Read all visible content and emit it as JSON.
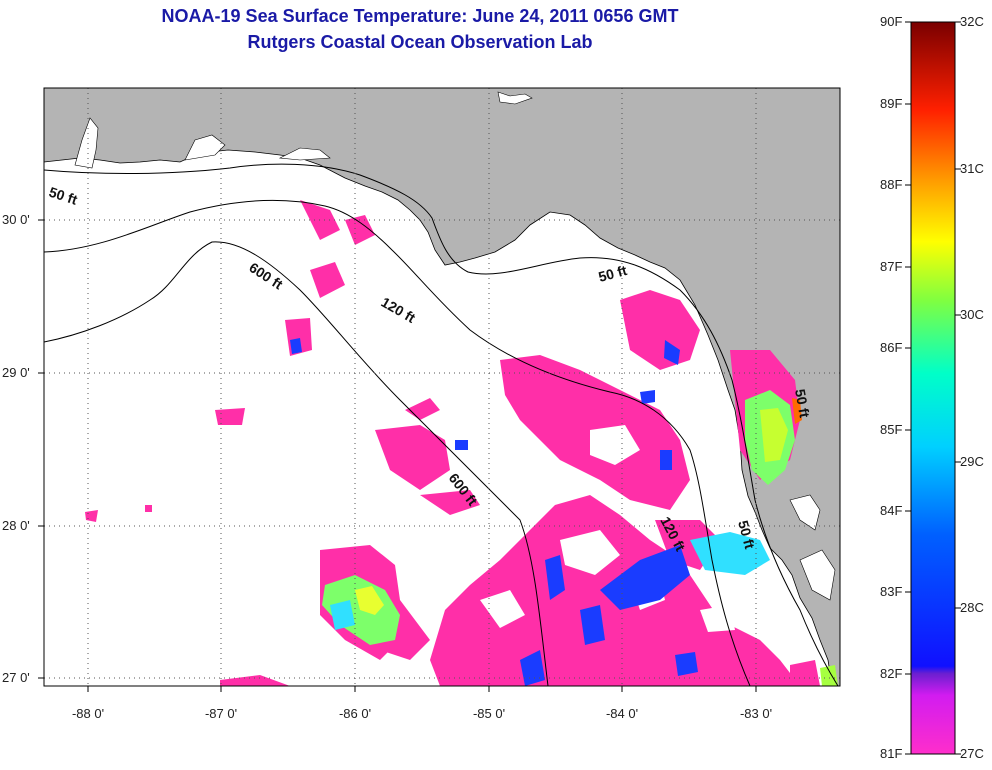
{
  "header": {
    "title": "NOAA-19 Sea Surface Temperature:  June 24, 2011 0656 GMT",
    "subtitle": "Rutgers Coastal Ocean Observation Lab"
  },
  "map": {
    "lat_labels": [
      "30 0'",
      "29 0'",
      "28 0'",
      "27 0'"
    ],
    "lon_labels": [
      "-88 0'",
      "-87 0'",
      "-86 0'",
      "-85 0'",
      "-84 0'",
      "-83 0'"
    ],
    "contours": [
      "50 ft",
      "600 ft",
      "120 ft",
      "50 ft",
      "600 ft",
      "120 ft",
      "50 ft",
      "50 ft"
    ]
  },
  "colorbar": {
    "fahrenheit": [
      "90F",
      "89F",
      "88F",
      "87F",
      "86F",
      "85F",
      "84F",
      "83F",
      "82F",
      "81F"
    ],
    "celsius": [
      "32C",
      "31C",
      "30C",
      "29C",
      "28C",
      "27C"
    ]
  },
  "colors": {
    "title": "#1a1aa6",
    "land": "#b4b4b4",
    "cloud": "#ffffff",
    "sst_cool": "#ff2fa8"
  }
}
